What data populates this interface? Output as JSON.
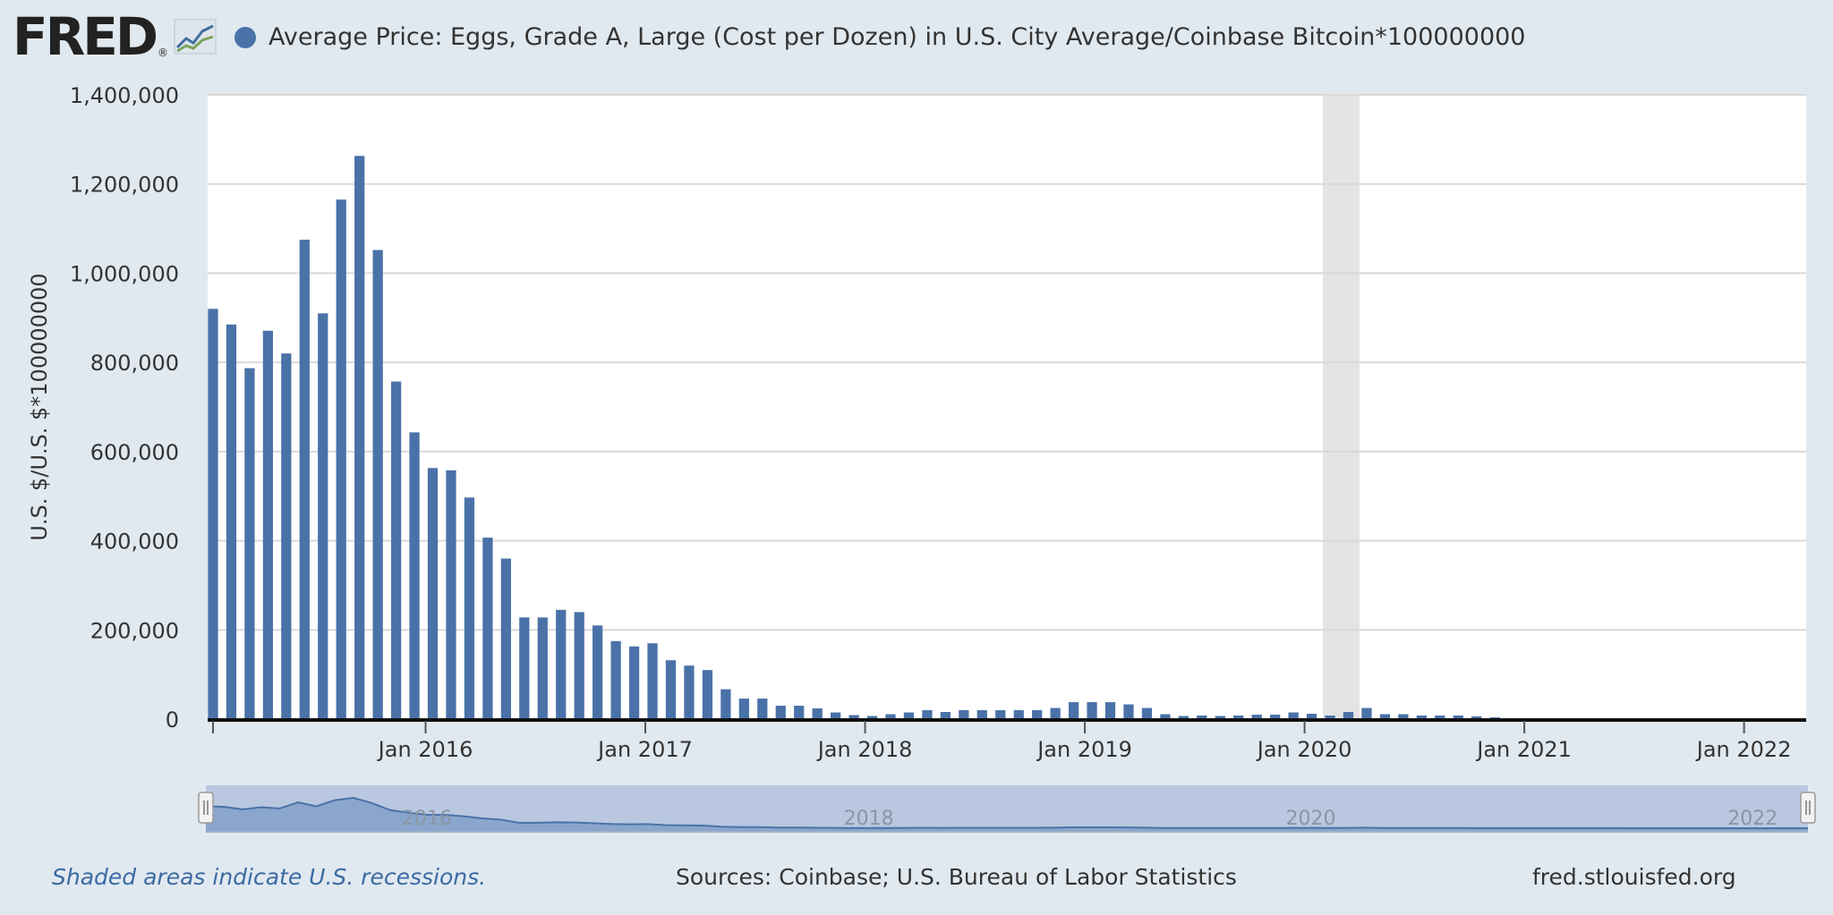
{
  "brand": {
    "name": "FRED",
    "registered": "®"
  },
  "legend": {
    "label": "Average Price: Eggs, Grade A, Large (Cost per Dozen) in U.S. City Average/Coinbase Bitcoin*100000000"
  },
  "colors": {
    "series": "#4a72a8",
    "recession": "#e4e4e4",
    "plot_bg": "#ffffff",
    "page_bg": "#e1e9f0",
    "navigator": "#b9c8e0"
  },
  "chart_data": {
    "type": "bar",
    "ylabel": "U.S. $/U.S. $*100000000",
    "ylim": [
      0,
      1400000
    ],
    "yticks": [
      0,
      200000,
      400000,
      600000,
      800000,
      1000000,
      1200000,
      1400000
    ],
    "ytick_labels": [
      "0",
      "200,000",
      "400,000",
      "600,000",
      "800,000",
      "1,000,000",
      "1,200,000",
      "1,400,000"
    ],
    "xlim": [
      "2015-01",
      "2022-04"
    ],
    "xticks": [
      "2016-01",
      "2017-01",
      "2018-01",
      "2019-01",
      "2020-01",
      "2021-01",
      "2022-01"
    ],
    "xtick_labels": [
      "Jan 2016",
      "Jan 2017",
      "Jan 2018",
      "Jan 2019",
      "Jan 2020",
      "Jan 2021",
      "Jan 2022"
    ],
    "recessions": [
      [
        "2020-02",
        "2020-04"
      ]
    ],
    "grid": true,
    "x": [
      "2015-01",
      "2015-02",
      "2015-03",
      "2015-04",
      "2015-05",
      "2015-06",
      "2015-07",
      "2015-08",
      "2015-09",
      "2015-10",
      "2015-11",
      "2015-12",
      "2016-01",
      "2016-02",
      "2016-03",
      "2016-04",
      "2016-05",
      "2016-06",
      "2016-07",
      "2016-08",
      "2016-09",
      "2016-10",
      "2016-11",
      "2016-12",
      "2017-01",
      "2017-02",
      "2017-03",
      "2017-04",
      "2017-05",
      "2017-06",
      "2017-07",
      "2017-08",
      "2017-09",
      "2017-10",
      "2017-11",
      "2017-12",
      "2018-01",
      "2018-02",
      "2018-03",
      "2018-04",
      "2018-05",
      "2018-06",
      "2018-07",
      "2018-08",
      "2018-09",
      "2018-10",
      "2018-11",
      "2018-12",
      "2019-01",
      "2019-02",
      "2019-03",
      "2019-04",
      "2019-05",
      "2019-06",
      "2019-07",
      "2019-08",
      "2019-09",
      "2019-10",
      "2019-11",
      "2019-12",
      "2020-01",
      "2020-02",
      "2020-03",
      "2020-04",
      "2020-05",
      "2020-06",
      "2020-07",
      "2020-08",
      "2020-09",
      "2020-10",
      "2020-11"
    ],
    "values": [
      920000,
      885000,
      787000,
      871000,
      820000,
      1075000,
      910000,
      1165000,
      1263000,
      1052000,
      757000,
      643000,
      563000,
      558000,
      497000,
      407000,
      360000,
      228000,
      228000,
      245000,
      240000,
      210000,
      175000,
      163000,
      170000,
      132000,
      120000,
      110000,
      67000,
      46000,
      46000,
      30000,
      30000,
      24000,
      15000,
      9000,
      7000,
      11000,
      15000,
      20000,
      16000,
      20000,
      20000,
      20000,
      20000,
      20000,
      25000,
      38000,
      38000,
      38000,
      33000,
      25000,
      11000,
      7000,
      8000,
      7000,
      8000,
      10000,
      10000,
      15000,
      12000,
      8000,
      16000,
      25000,
      11000,
      11000,
      8000,
      8000,
      8000,
      6000,
      4000
    ]
  },
  "navigator": {
    "labels": [
      "2016",
      "2018",
      "2020",
      "2022"
    ]
  },
  "footer": {
    "note": "Shaded areas indicate U.S. recessions.",
    "sources": "Sources: Coinbase; U.S. Bureau of Labor Statistics",
    "site": "fred.stlouisfed.org"
  }
}
